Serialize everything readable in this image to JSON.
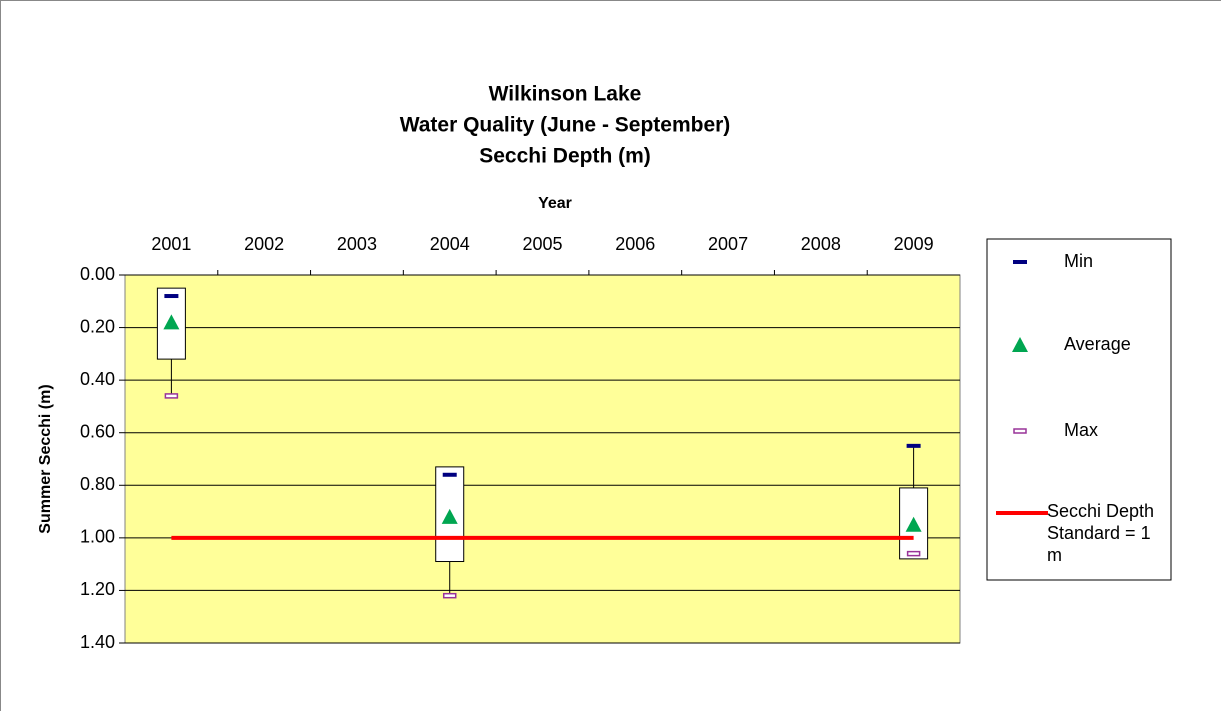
{
  "chart_data": {
    "type": "box",
    "title": [
      "Wilkinson Lake",
      "Water Quality (June - September)",
      "Secchi Depth (m)"
    ],
    "x_label": "Year",
    "y_label": "Summer Secchi (m)",
    "categories": [
      "2001",
      "2002",
      "2003",
      "2004",
      "2005",
      "2006",
      "2007",
      "2008",
      "2009"
    ],
    "ylim": [
      0,
      1.4
    ],
    "y_inverted": true,
    "yticks": [
      {
        "value": 0,
        "label": "0.00"
      },
      {
        "value": 0.2,
        "label": "0.20"
      },
      {
        "value": 0.4,
        "label": "0.40"
      },
      {
        "value": 0.6,
        "label": "0.60"
      },
      {
        "value": 0.8,
        "label": "0.80"
      },
      {
        "value": 1.0,
        "label": "1.00"
      },
      {
        "value": 1.2,
        "label": "1.20"
      },
      {
        "value": 1.4,
        "label": "1.40"
      }
    ],
    "grid": true,
    "plot_color": "#ffff99",
    "box_top": [
      0.05,
      null,
      null,
      0.73,
      null,
      null,
      null,
      null,
      0.81
    ],
    "box_bottom": [
      0.32,
      null,
      null,
      1.09,
      null,
      null,
      null,
      null,
      1.08
    ],
    "series": [
      {
        "name": "Min",
        "color": "#000080",
        "marker": "dash",
        "values": [
          0.08,
          null,
          null,
          0.76,
          null,
          null,
          null,
          null,
          0.65
        ]
      },
      {
        "name": "Average",
        "color": "#00a651",
        "marker": "triangle",
        "values": [
          0.18,
          null,
          null,
          0.92,
          null,
          null,
          null,
          null,
          0.95
        ]
      },
      {
        "name": "Max",
        "color": "#993399",
        "marker": "hollow-dash",
        "values": [
          0.46,
          null,
          null,
          1.22,
          null,
          null,
          null,
          null,
          1.06
        ]
      },
      {
        "name": "Secchi Depth Standard = 1 m",
        "color": "#ff0000",
        "marker": "line",
        "values": [
          1,
          1,
          1,
          1,
          1,
          1,
          1,
          1,
          1
        ]
      }
    ],
    "legend": "right"
  }
}
